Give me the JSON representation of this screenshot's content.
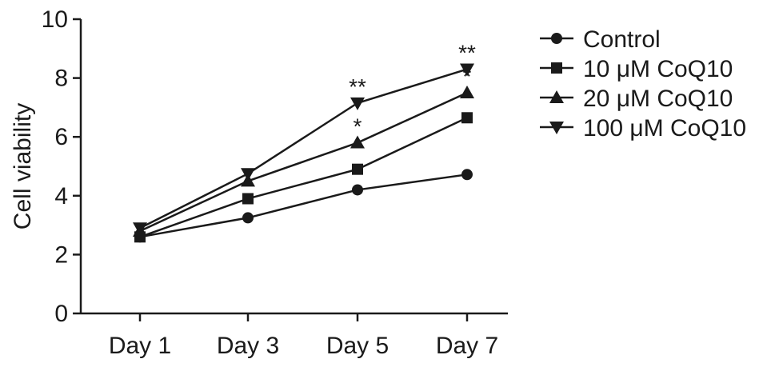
{
  "chart_data": {
    "type": "line",
    "title": "",
    "xlabel": "",
    "ylabel": "Cell viability",
    "ylim": [
      0,
      10
    ],
    "yticks": [
      "0",
      "2",
      "4",
      "6",
      "8",
      "10"
    ],
    "categories": [
      "Day 1",
      "Day 3",
      "Day 5",
      "Day 7"
    ],
    "grid": false,
    "legend_position": "right",
    "series": [
      {
        "name": "Control",
        "marker": "circle",
        "values": [
          2.6,
          3.25,
          4.2,
          4.72
        ]
      },
      {
        "name": "10 μM CoQ10",
        "marker": "square",
        "values": [
          2.6,
          3.9,
          4.9,
          6.65
        ]
      },
      {
        "name": "20 μM CoQ10",
        "marker": "triangle-up",
        "values": [
          2.8,
          4.5,
          5.8,
          7.5
        ]
      },
      {
        "name": "100 μM CoQ10",
        "marker": "triangle-down",
        "values": [
          2.9,
          4.75,
          7.15,
          8.3
        ]
      }
    ],
    "annotations": [
      {
        "text": "**",
        "category": "Day 5",
        "y": 7.15,
        "series": "100 μM CoQ10"
      },
      {
        "text": "*",
        "category": "Day 5",
        "y": 5.8,
        "series": "20 μM CoQ10"
      },
      {
        "text": "**",
        "category": "Day 7",
        "y": 8.3,
        "series": "100 μM CoQ10"
      },
      {
        "text": "*",
        "category": "Day 7",
        "y": 7.5,
        "series": "20 μM CoQ10"
      }
    ],
    "colors": {
      "line": "#1a1a1a",
      "marker": "#1a1a1a"
    }
  }
}
